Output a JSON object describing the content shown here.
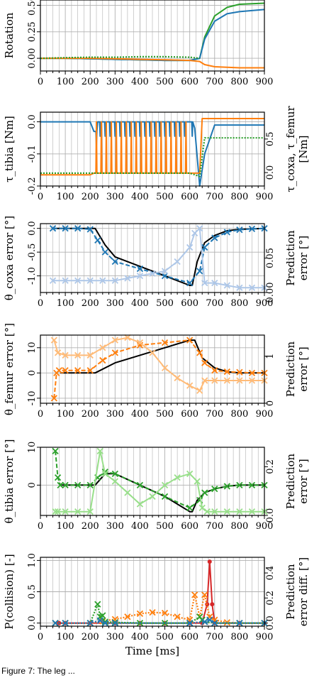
{
  "colors": {
    "blue": "#1f77b4",
    "light_blue": "#aec7e8",
    "orange": "#ff7f0e",
    "light_orange": "#ffbb78",
    "green": "#2ca02c",
    "light_green": "#98df8a",
    "red": "#d62728",
    "purple": "#9467bd",
    "black": "#000000",
    "grid": "#b0b0b0"
  },
  "caption": "Figure 7: The leg ... ",
  "chart_data": [
    {
      "type": "line",
      "ylabel": "Rotation",
      "xlabel": "",
      "xlim": [
        0,
        900
      ],
      "ylim": [
        -0.12,
        0.55
      ],
      "xticks": [
        "0",
        "100",
        "200",
        "300",
        "400",
        "500",
        "600",
        "700",
        "800",
        "900"
      ],
      "yticks": [
        "0.00",
        "0.25",
        "0.50"
      ],
      "grid": true,
      "series": [
        {
          "color": "green",
          "style": "solid",
          "x": [
            0,
            100,
            200,
            300,
            400,
            500,
            600,
            640,
            660,
            700,
            750,
            800,
            900
          ],
          "y": [
            0,
            0,
            -0.005,
            -0.01,
            -0.015,
            -0.02,
            -0.02,
            0,
            0.2,
            0.4,
            0.48,
            0.51,
            0.52
          ]
        },
        {
          "color": "blue",
          "style": "solid",
          "x": [
            0,
            100,
            200,
            300,
            400,
            500,
            600,
            640,
            660,
            700,
            750,
            800,
            900
          ],
          "y": [
            0,
            0,
            -0.005,
            -0.01,
            -0.015,
            -0.02,
            -0.02,
            0,
            0.18,
            0.35,
            0.42,
            0.44,
            0.46
          ]
        },
        {
          "color": "orange",
          "style": "solid",
          "x": [
            0,
            100,
            200,
            300,
            400,
            500,
            600,
            640,
            660,
            700,
            800,
            900
          ],
          "y": [
            0,
            0,
            0,
            -0.005,
            -0.01,
            -0.015,
            -0.02,
            -0.03,
            -0.06,
            -0.08,
            -0.09,
            -0.09
          ]
        },
        {
          "color": "green",
          "style": "dotted",
          "x": [
            0,
            100,
            200,
            300,
            400,
            500,
            600,
            640
          ],
          "y": [
            0,
            0.005,
            0.01,
            0.01,
            0.015,
            0.015,
            0.01,
            0
          ]
        }
      ]
    },
    {
      "type": "line",
      "ylabel": "τ_tibia [Nm]",
      "ylabel2": "τ_coxa, τ_femur [Nm]",
      "xlabel": "",
      "xlim": [
        0,
        900
      ],
      "ylim": [
        -0.2,
        0.03
      ],
      "ylim2": [
        -0.2,
        0.9
      ],
      "xticks": [
        "0",
        "100",
        "200",
        "300",
        "400",
        "500",
        "600",
        "700",
        "800",
        "900"
      ],
      "yticks": [
        "0.0",
        "-0.1",
        "-0.2"
      ],
      "yticks2": [
        "0.0",
        "0.5"
      ],
      "grid": true,
      "series": [
        {
          "color": "blue",
          "style": "solid",
          "x": [
            0,
            100,
            200,
            215,
            230,
            600,
            620,
            640,
            660,
            700,
            900
          ],
          "y": [
            0,
            0,
            0,
            -0.03,
            0,
            0,
            -0.02,
            -0.2,
            -0.1,
            -0.01,
            -0.01
          ]
        },
        {
          "color": "orange",
          "style": "solid",
          "x": [
            0,
            100,
            200,
            215,
            600,
            640,
            650,
            700,
            900
          ],
          "y": [
            -0.165,
            -0.165,
            -0.165,
            -0.16,
            -0.16,
            -0.16,
            0.01,
            0.01,
            0.01
          ]
        },
        {
          "color": "green",
          "style": "dotted",
          "x": [
            0,
            100,
            200,
            600,
            640,
            660,
            700,
            900
          ],
          "y": [
            -0.16,
            -0.16,
            -0.16,
            -0.16,
            -0.17,
            -0.05,
            -0.05,
            -0.05
          ]
        }
      ],
      "oscillation": {
        "x_start": 215,
        "x_end": 635,
        "period": 20,
        "series": [
          "blue",
          "orange",
          "green"
        ]
      }
    },
    {
      "type": "line",
      "ylabel": "θ_coxa error [°]",
      "ylabel2": "Prediction error [°]",
      "xlabel": "",
      "xlim": [
        0,
        900
      ],
      "ylim": [
        -1.35,
        0.1
      ],
      "ylim2": [
        0,
        0.1
      ],
      "xticks": [
        "0",
        "100",
        "200",
        "300",
        "400",
        "500",
        "600",
        "700",
        "800",
        "900"
      ],
      "yticks": [
        "0.0",
        "-0.5",
        "-1.0"
      ],
      "yticks2": [
        "0.00",
        "0.05"
      ],
      "grid": true,
      "series": [
        {
          "color": "black",
          "style": "solid",
          "x": [
            50,
            200,
            220,
            260,
            300,
            400,
            500,
            600,
            610,
            630,
            660,
            700,
            750,
            800,
            900
          ],
          "y": [
            0,
            0,
            0,
            -0.35,
            -0.6,
            -0.8,
            -1.0,
            -1.2,
            -1.2,
            -0.7,
            -0.3,
            -0.15,
            -0.05,
            -0.02,
            0
          ]
        },
        {
          "color": "blue",
          "style": "dashed-x",
          "x": [
            50,
            100,
            150,
            200,
            230,
            260,
            300,
            400,
            500,
            600,
            640,
            660,
            700,
            750,
            800,
            850,
            900
          ],
          "y": [
            0,
            0,
            0,
            -0.02,
            -0.25,
            -0.5,
            -0.7,
            -0.85,
            -1.0,
            -1.15,
            -0.9,
            -0.4,
            -0.2,
            -0.08,
            -0.03,
            -0.01,
            0
          ]
        },
        {
          "color": "light_blue",
          "style": "solid-x",
          "x": [
            50,
            100,
            150,
            200,
            250,
            300,
            350,
            400,
            450,
            500,
            550,
            600,
            620,
            640,
            660,
            700,
            750,
            800,
            850,
            900
          ],
          "y": [
            -1.1,
            -1.1,
            -1.1,
            -1.1,
            -1.1,
            -1.1,
            -1.05,
            -1.0,
            -0.95,
            -0.9,
            -0.7,
            -0.4,
            -0.1,
            0,
            -1.15,
            -1.15,
            -1.2,
            -1.25,
            -1.25,
            -1.25
          ]
        }
      ]
    },
    {
      "type": "line",
      "ylabel": "θ_femur error [°]",
      "ylabel2": "Prediction error [°]",
      "xlabel": "",
      "xlim": [
        0,
        900
      ],
      "ylim": [
        -12,
        15
      ],
      "ylim2": [
        0,
        1.45
      ],
      "xticks": [
        "0",
        "100",
        "200",
        "300",
        "400",
        "500",
        "600",
        "700",
        "800",
        "900"
      ],
      "yticks": [
        "10",
        "0",
        "-10"
      ],
      "yticks2": [
        "0",
        "1"
      ],
      "grid": true,
      "series": [
        {
          "color": "black",
          "style": "solid",
          "x": [
            80,
            200,
            220,
            300,
            400,
            500,
            600,
            620,
            650,
            700,
            750,
            800,
            900
          ],
          "y": [
            0,
            0,
            0,
            4,
            7,
            10,
            13,
            13,
            6,
            2,
            0.5,
            0,
            0
          ]
        },
        {
          "color": "orange",
          "style": "dashed-x",
          "x": [
            55,
            65,
            75,
            100,
            150,
            200,
            250,
            300,
            400,
            500,
            600,
            640,
            660,
            700,
            750,
            800,
            850,
            900
          ],
          "y": [
            -10,
            0,
            1,
            1,
            1,
            1,
            5,
            8,
            11,
            12,
            13,
            8,
            4,
            1,
            0.5,
            0.3,
            0,
            0
          ]
        },
        {
          "color": "light_orange",
          "style": "solid-x",
          "x": [
            55,
            70,
            100,
            150,
            200,
            250,
            300,
            350,
            400,
            450,
            500,
            550,
            600,
            640,
            660,
            700,
            750,
            800,
            850,
            900
          ],
          "y": [
            13,
            8,
            7,
            7,
            7,
            10,
            13,
            14,
            12,
            8,
            2,
            -2,
            -5,
            -7,
            -3,
            -3,
            -3,
            -3,
            -3,
            -3
          ]
        }
      ]
    },
    {
      "type": "line",
      "ylabel": "θ_tibia error [°]",
      "ylabel2": "Prediction error [°]",
      "xlabel": "",
      "xlim": [
        0,
        900
      ],
      "ylim": [
        -8,
        10
      ],
      "ylim2": [
        0,
        0.28
      ],
      "xticks": [
        "0",
        "100",
        "200",
        "300",
        "400",
        "500",
        "600",
        "700",
        "800",
        "900"
      ],
      "yticks": [
        "10",
        "0"
      ],
      "yticks2": [
        "0.0",
        "0.2"
      ],
      "grid": true,
      "series": [
        {
          "color": "black",
          "style": "solid",
          "x": [
            80,
            200,
            220,
            260,
            300,
            400,
            500,
            600,
            610,
            630,
            660,
            700,
            750,
            800,
            900
          ],
          "y": [
            0,
            0,
            0,
            3,
            3,
            0,
            -3,
            -7,
            -7,
            -4,
            -2,
            -1,
            -0.3,
            0,
            0
          ]
        },
        {
          "color": "green",
          "style": "dashed-x",
          "x": [
            60,
            70,
            80,
            100,
            150,
            200,
            230,
            260,
            300,
            400,
            500,
            600,
            640,
            660,
            700,
            750,
            800,
            850,
            900
          ],
          "y": [
            9,
            2,
            0,
            0,
            0,
            0,
            2,
            3.5,
            3,
            0,
            -3,
            -6,
            -4,
            -2,
            -1,
            -0.3,
            0,
            0,
            0
          ]
        },
        {
          "color": "light_green",
          "style": "solid-x",
          "x": [
            60,
            70,
            100,
            150,
            200,
            240,
            260,
            300,
            350,
            400,
            450,
            500,
            550,
            600,
            630,
            650,
            670,
            700,
            750,
            800,
            850,
            900
          ],
          "y": [
            -7,
            -7,
            -7,
            -7,
            -7,
            9,
            3,
            1,
            -2,
            -5,
            -3,
            0,
            2,
            3,
            1,
            -6,
            -7,
            -7,
            -7,
            -7,
            -7,
            -7
          ]
        }
      ]
    },
    {
      "type": "line",
      "ylabel": "P(collision) [-]",
      "ylabel2": "Prediction error diff. [°]",
      "xlabel": "Time [ms]",
      "xlim": [
        0,
        900
      ],
      "ylim": [
        -0.05,
        1.05
      ],
      "ylim2": [
        -0.025,
        0.525
      ],
      "xticks": [
        "0",
        "100",
        "200",
        "300",
        "400",
        "500",
        "600",
        "700",
        "800",
        "900"
      ],
      "yticks": [
        "1.0",
        "0.5",
        "0.0"
      ],
      "yticks2": [
        "0.4",
        "0.2",
        "0.0"
      ],
      "grid": true,
      "series": [
        {
          "color": "red",
          "style": "solid-o",
          "x": [
            75,
            100,
            200,
            300,
            400,
            500,
            600,
            650,
            670,
            680,
            690,
            700,
            800,
            900
          ],
          "y": [
            0,
            0,
            0,
            0,
            0,
            0,
            0,
            0,
            0.3,
            0.98,
            0.3,
            0,
            0,
            0
          ]
        },
        {
          "color": "orange",
          "style": "dotted-x",
          "x": [
            60,
            100,
            200,
            250,
            300,
            350,
            400,
            450,
            500,
            550,
            600,
            620,
            640,
            660,
            680,
            700,
            750,
            800,
            900
          ],
          "y": [
            0,
            0,
            0,
            0.03,
            0.06,
            0.1,
            0.15,
            0.17,
            0.16,
            0.1,
            0.05,
            0.45,
            0.1,
            0.45,
            0.1,
            0.05,
            0.01,
            0,
            0
          ]
        },
        {
          "color": "green",
          "style": "dotted-x",
          "x": [
            60,
            100,
            200,
            230,
            240,
            250,
            260,
            300,
            400,
            500,
            600,
            640,
            650,
            660,
            700,
            800,
            900
          ],
          "y": [
            0,
            0,
            0,
            0.3,
            0.1,
            0.12,
            0.02,
            0.01,
            0,
            0,
            0,
            0.1,
            0.05,
            0.02,
            0,
            0,
            0
          ]
        },
        {
          "color": "blue",
          "style": "dotted-x",
          "x": [
            60,
            100,
            200,
            240,
            260,
            300,
            600,
            660,
            680,
            700,
            800,
            900
          ],
          "y": [
            0,
            0,
            0,
            0.04,
            0,
            0,
            0,
            0.02,
            0.05,
            0,
            0,
            0
          ]
        }
      ]
    }
  ]
}
